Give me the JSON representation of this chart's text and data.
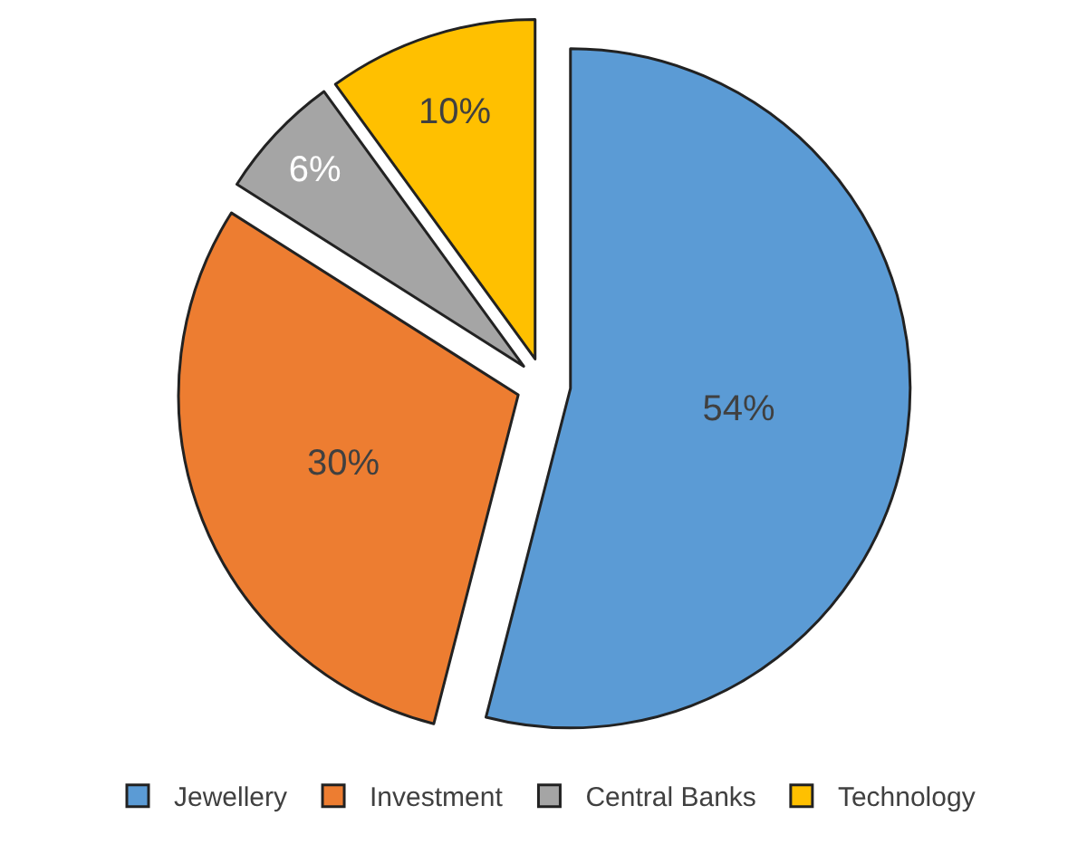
{
  "chart_data": {
    "type": "pie",
    "categories": [
      "Jewellery",
      "Investment",
      "Central Banks",
      "Technology"
    ],
    "values": [
      54,
      30,
      6,
      10
    ],
    "colors": [
      "#5b9bd5",
      "#ed7d31",
      "#a5a5a5",
      "#ffc000"
    ],
    "value_labels": [
      "54%",
      "30%",
      "6%",
      "10%"
    ],
    "legend": "bottom"
  }
}
